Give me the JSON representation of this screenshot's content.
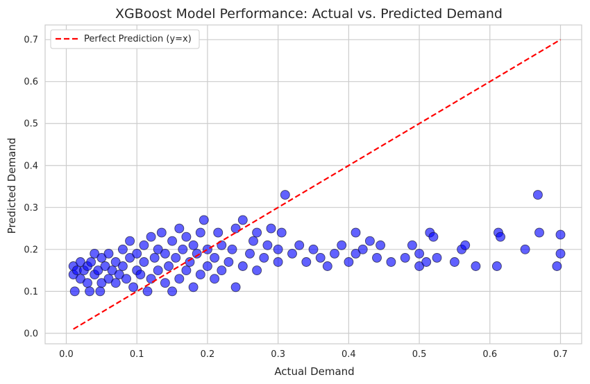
{
  "chart_data": {
    "type": "scatter",
    "title": "XGBoost Model Performance: Actual vs. Predicted Demand",
    "xlabel": "Actual Demand",
    "ylabel": "Predicted Demand",
    "xlim": [
      -0.03,
      0.73
    ],
    "ylim": [
      -0.025,
      0.735
    ],
    "xticks": [
      "0.0",
      "0.1",
      "0.2",
      "0.3",
      "0.4",
      "0.5",
      "0.6",
      "0.7"
    ],
    "yticks": [
      "0.0",
      "0.1",
      "0.2",
      "0.3",
      "0.4",
      "0.5",
      "0.6",
      "0.7"
    ],
    "grid": true,
    "legend_position": "top-left",
    "colors": {
      "points": "#0000ff",
      "point_edge": "#1a1a3a",
      "reference_line": "#ff0000",
      "grid": "#cccccc",
      "frame": "#cccccc",
      "text": "#262626"
    },
    "reference_line": {
      "name": "Perfect Prediction (y=x)",
      "x": [
        0.01,
        0.7
      ],
      "y": [
        0.01,
        0.7
      ]
    },
    "series": [
      {
        "points": [
          [
            0.01,
            0.16
          ],
          [
            0.01,
            0.14
          ],
          [
            0.012,
            0.1
          ],
          [
            0.015,
            0.15
          ],
          [
            0.02,
            0.17
          ],
          [
            0.02,
            0.13
          ],
          [
            0.025,
            0.15
          ],
          [
            0.03,
            0.16
          ],
          [
            0.03,
            0.12
          ],
          [
            0.033,
            0.1
          ],
          [
            0.035,
            0.17
          ],
          [
            0.04,
            0.14
          ],
          [
            0.04,
            0.19
          ],
          [
            0.045,
            0.15
          ],
          [
            0.048,
            0.1
          ],
          [
            0.05,
            0.12
          ],
          [
            0.05,
            0.18
          ],
          [
            0.055,
            0.16
          ],
          [
            0.06,
            0.13
          ],
          [
            0.06,
            0.19
          ],
          [
            0.065,
            0.15
          ],
          [
            0.07,
            0.17
          ],
          [
            0.07,
            0.12
          ],
          [
            0.075,
            0.14
          ],
          [
            0.08,
            0.2
          ],
          [
            0.08,
            0.16
          ],
          [
            0.085,
            0.13
          ],
          [
            0.09,
            0.18
          ],
          [
            0.09,
            0.22
          ],
          [
            0.095,
            0.11
          ],
          [
            0.1,
            0.15
          ],
          [
            0.1,
            0.19
          ],
          [
            0.105,
            0.14
          ],
          [
            0.11,
            0.21
          ],
          [
            0.11,
            0.17
          ],
          [
            0.115,
            0.1
          ],
          [
            0.12,
            0.23
          ],
          [
            0.12,
            0.13
          ],
          [
            0.125,
            0.18
          ],
          [
            0.13,
            0.2
          ],
          [
            0.13,
            0.15
          ],
          [
            0.135,
            0.24
          ],
          [
            0.14,
            0.12
          ],
          [
            0.14,
            0.19
          ],
          [
            0.145,
            0.16
          ],
          [
            0.15,
            0.22
          ],
          [
            0.15,
            0.1
          ],
          [
            0.155,
            0.18
          ],
          [
            0.16,
            0.25
          ],
          [
            0.16,
            0.13
          ],
          [
            0.165,
            0.2
          ],
          [
            0.17,
            0.15
          ],
          [
            0.17,
            0.23
          ],
          [
            0.175,
            0.17
          ],
          [
            0.18,
            0.11
          ],
          [
            0.18,
            0.21
          ],
          [
            0.185,
            0.19
          ],
          [
            0.19,
            0.14
          ],
          [
            0.19,
            0.24
          ],
          [
            0.195,
            0.27
          ],
          [
            0.2,
            0.16
          ],
          [
            0.2,
            0.2
          ],
          [
            0.21,
            0.13
          ],
          [
            0.21,
            0.18
          ],
          [
            0.215,
            0.24
          ],
          [
            0.22,
            0.15
          ],
          [
            0.22,
            0.21
          ],
          [
            0.23,
            0.17
          ],
          [
            0.235,
            0.2
          ],
          [
            0.24,
            0.11
          ],
          [
            0.24,
            0.25
          ],
          [
            0.25,
            0.16
          ],
          [
            0.25,
            0.27
          ],
          [
            0.26,
            0.19
          ],
          [
            0.265,
            0.22
          ],
          [
            0.27,
            0.15
          ],
          [
            0.27,
            0.24
          ],
          [
            0.28,
            0.18
          ],
          [
            0.285,
            0.21
          ],
          [
            0.29,
            0.25
          ],
          [
            0.3,
            0.17
          ],
          [
            0.3,
            0.2
          ],
          [
            0.305,
            0.24
          ],
          [
            0.31,
            0.33
          ],
          [
            0.32,
            0.19
          ],
          [
            0.33,
            0.21
          ],
          [
            0.34,
            0.17
          ],
          [
            0.35,
            0.2
          ],
          [
            0.36,
            0.18
          ],
          [
            0.37,
            0.16
          ],
          [
            0.38,
            0.19
          ],
          [
            0.39,
            0.21
          ],
          [
            0.4,
            0.17
          ],
          [
            0.41,
            0.24
          ],
          [
            0.41,
            0.19
          ],
          [
            0.42,
            0.2
          ],
          [
            0.43,
            0.22
          ],
          [
            0.44,
            0.18
          ],
          [
            0.445,
            0.21
          ],
          [
            0.46,
            0.17
          ],
          [
            0.48,
            0.18
          ],
          [
            0.49,
            0.21
          ],
          [
            0.5,
            0.16
          ],
          [
            0.5,
            0.19
          ],
          [
            0.51,
            0.17
          ],
          [
            0.515,
            0.24
          ],
          [
            0.52,
            0.23
          ],
          [
            0.525,
            0.18
          ],
          [
            0.55,
            0.17
          ],
          [
            0.56,
            0.2
          ],
          [
            0.565,
            0.21
          ],
          [
            0.58,
            0.16
          ],
          [
            0.61,
            0.16
          ],
          [
            0.612,
            0.24
          ],
          [
            0.615,
            0.23
          ],
          [
            0.65,
            0.2
          ],
          [
            0.668,
            0.33
          ],
          [
            0.67,
            0.24
          ],
          [
            0.695,
            0.16
          ],
          [
            0.7,
            0.19
          ],
          [
            0.7,
            0.235
          ]
        ]
      }
    ]
  }
}
